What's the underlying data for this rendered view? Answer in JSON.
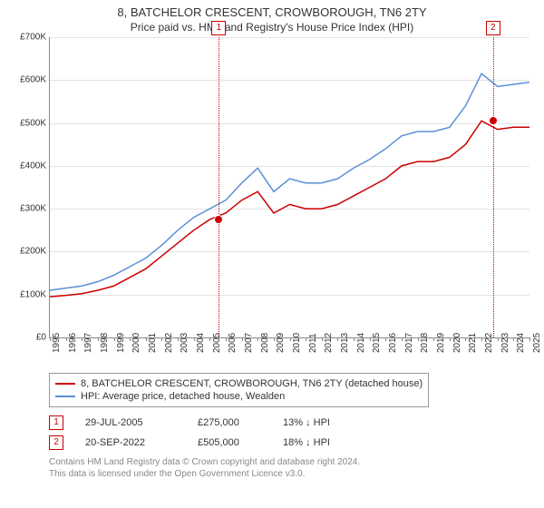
{
  "title": {
    "main": "8, BATCHELOR CRESCENT, CROWBOROUGH, TN6 2TY",
    "sub": "Price paid vs. HM Land Registry's House Price Index (HPI)"
  },
  "chart": {
    "type": "line",
    "background_color": "#ffffff",
    "grid_color": "#e4e4e4",
    "axis_color": "#888888",
    "x_years": [
      1995,
      1996,
      1997,
      1998,
      1999,
      2000,
      2001,
      2002,
      2003,
      2004,
      2005,
      2006,
      2007,
      2008,
      2009,
      2010,
      2011,
      2012,
      2013,
      2014,
      2015,
      2016,
      2017,
      2018,
      2019,
      2020,
      2021,
      2022,
      2023,
      2024,
      2025
    ],
    "xlim": [
      1995,
      2025
    ],
    "ylim": [
      0,
      700000
    ],
    "ytick_step": 100000,
    "y_ticks": [
      "£0",
      "£100K",
      "£200K",
      "£300K",
      "£400K",
      "£500K",
      "£600K",
      "£700K"
    ],
    "label_fontsize": 10,
    "series": [
      {
        "name": "price_paid",
        "color": "#cc0000",
        "line_width": 1.5,
        "values": [
          95000,
          98000,
          102000,
          110000,
          120000,
          140000,
          160000,
          190000,
          220000,
          250000,
          275000,
          290000,
          320000,
          340000,
          290000,
          310000,
          300000,
          300000,
          310000,
          330000,
          350000,
          370000,
          400000,
          410000,
          410000,
          420000,
          450000,
          505000,
          485000,
          490000,
          490000
        ]
      },
      {
        "name": "hpi",
        "color": "#5b8fd6",
        "line_width": 1.5,
        "values": [
          110000,
          115000,
          120000,
          130000,
          145000,
          165000,
          185000,
          215000,
          250000,
          280000,
          300000,
          320000,
          360000,
          395000,
          340000,
          370000,
          360000,
          360000,
          370000,
          395000,
          415000,
          440000,
          470000,
          480000,
          480000,
          490000,
          540000,
          615000,
          585000,
          590000,
          595000
        ]
      }
    ],
    "vertical_markers": [
      {
        "label": "1",
        "year_fraction": 2005.57,
        "color": "#cc0000"
      },
      {
        "label": "2",
        "year_fraction": 2022.72,
        "color": "#cc0000"
      }
    ],
    "sale_points": [
      {
        "year_fraction": 2005.57,
        "value": 275000,
        "color": "#cc0000"
      },
      {
        "year_fraction": 2022.72,
        "value": 505000,
        "color": "#cc0000"
      }
    ]
  },
  "legend": {
    "items": [
      {
        "color": "#cc0000",
        "label": "8, BATCHELOR CRESCENT, CROWBOROUGH, TN6 2TY (detached house)"
      },
      {
        "color": "#5b8fd6",
        "label": "HPI: Average price, detached house, Wealden"
      }
    ]
  },
  "sales": [
    {
      "n": "1",
      "date": "29-JUL-2005",
      "price": "£275,000",
      "diff": "13% ↓ HPI"
    },
    {
      "n": "2",
      "date": "20-SEP-2022",
      "price": "£505,000",
      "diff": "18% ↓ HPI"
    }
  ],
  "attribution": {
    "line1": "Contains HM Land Registry data © Crown copyright and database right 2024.",
    "line2": "This data is licensed under the Open Government Licence v3.0."
  }
}
